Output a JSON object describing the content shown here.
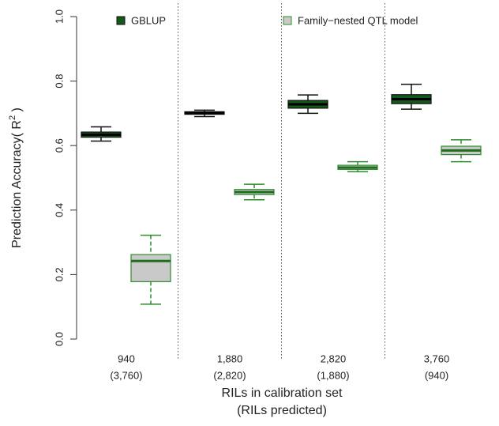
{
  "chart_data": {
    "type": "box",
    "categories": [
      "940",
      "1,880",
      "2,820",
      "3,760"
    ],
    "categories_predicted": [
      "(3,760)",
      "(2,820)",
      "(1,880)",
      "(940)"
    ],
    "xlabel": [
      "RILs in calibration set",
      "(RILs predicted)"
    ],
    "ylabel": [
      "Prediction Accuracy( R",
      "2",
      " )"
    ],
    "ylim": [
      -0.03,
      1.0
    ],
    "yticks": [
      {
        "value": 0,
        "label": "0.0"
      },
      0.2,
      0.4,
      0.6,
      0.8,
      {
        "value": 1,
        "label": "1.0"
      }
    ],
    "series": [
      {
        "name": "GBLUP",
        "color": "#15591a",
        "border": "#111111",
        "median_color": "#000000",
        "whisker_color": "#111111",
        "whisker_dash": false,
        "min": [
          0.614,
          0.69,
          0.7,
          0.713
        ],
        "q1": [
          0.626,
          0.697,
          0.716,
          0.73
        ],
        "median": [
          0.634,
          0.701,
          0.728,
          0.744
        ],
        "q3": [
          0.642,
          0.705,
          0.74,
          0.758
        ],
        "max": [
          0.658,
          0.71,
          0.757,
          0.79
        ]
      },
      {
        "name": "Family−nested QTL model",
        "color": "#c9c9c9",
        "border": "#2e8b2e",
        "median_color": "#1d6e1d",
        "whisker_color": "#2e8b2e",
        "whisker_dash": true,
        "min": [
          0.108,
          0.432,
          0.519,
          0.55
        ],
        "q1": [
          0.178,
          0.448,
          0.526,
          0.572
        ],
        "median": [
          0.242,
          0.456,
          0.532,
          0.585
        ],
        "q3": [
          0.262,
          0.464,
          0.539,
          0.598
        ],
        "max": [
          0.322,
          0.48,
          0.55,
          0.618
        ]
      }
    ]
  }
}
